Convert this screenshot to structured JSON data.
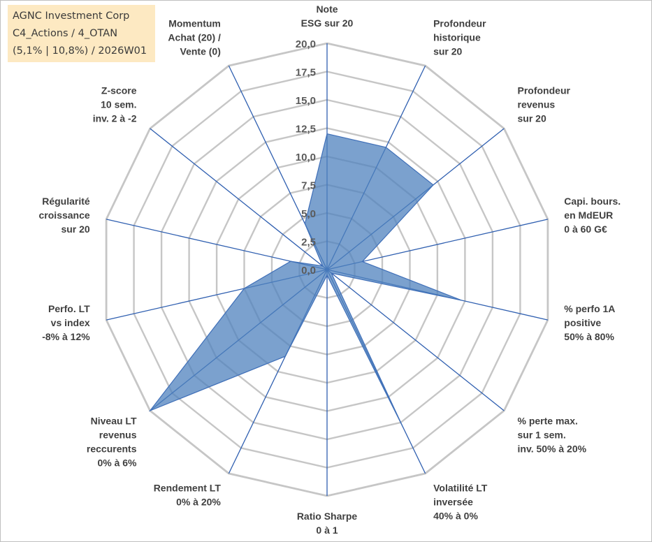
{
  "info": {
    "line1": "AGNC Investment Corp",
    "line2": "C4_Actions / 4_OTAN",
    "line3": "(5,1% | 10,8%) / 2026W01"
  },
  "chart_data": {
    "type": "radar",
    "title": "",
    "rmin": 0,
    "rmax": 20,
    "tick_step": 2.5,
    "tick_labels": [
      "0,0",
      "2,5",
      "5,0",
      "7,5",
      "10,0",
      "12,5",
      "15,0",
      "17,5",
      "20,0"
    ],
    "series_color": "#4f81bd",
    "axes": [
      {
        "label": [
          "Note",
          "ESG sur 20"
        ],
        "value": 12.0
      },
      {
        "label": [
          "Profondeur",
          "historique",
          "sur 20"
        ],
        "value": 12.0
      },
      {
        "label": [
          "Profondeur",
          "revenus",
          "sur 20"
        ],
        "value": 12.0
      },
      {
        "label": [
          "Capi. bours.",
          "en MdEUR",
          "0 à 60 G€"
        ],
        "value": 3.2
      },
      {
        "label": [
          "% perfo 1A",
          "positive",
          "50% à 80%"
        ],
        "value": 12.2
      },
      {
        "label": [
          "% perte max.",
          "sur 1 sem.",
          "inv. 50% à 20%"
        ],
        "value": 0.5
      },
      {
        "label": [
          "Volatilité LT",
          "inversée",
          "40% à 0%"
        ],
        "value": 15.5
      },
      {
        "label": [
          "Ratio Sharpe",
          "0 à 1"
        ],
        "value": 0.5
      },
      {
        "label": [
          "Rendement LT",
          "0% à 20%"
        ],
        "value": 8.5
      },
      {
        "label": [
          "Niveau LT",
          "revenus",
          "reccurents",
          "0% à 6%"
        ],
        "value": 20.0
      },
      {
        "label": [
          "Perfo. LT",
          "vs index",
          "-8% à 12%"
        ],
        "value": 7.5
      },
      {
        "label": [
          "Régularité",
          "croissance",
          "sur 20"
        ],
        "value": 3.3
      },
      {
        "label": [
          "Z-score",
          "10 sem.",
          "inv. 2 à -2"
        ],
        "value": 0.5
      },
      {
        "label": [
          "Momentum",
          "Achat (20) /",
          "Vente (0)"
        ],
        "value": 4.5
      }
    ]
  }
}
